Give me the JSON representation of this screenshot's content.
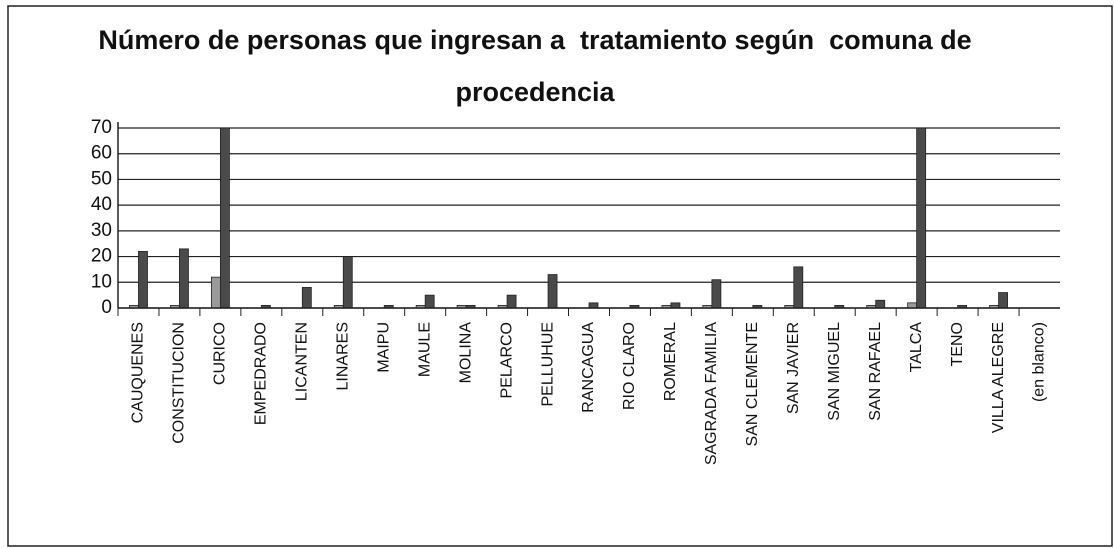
{
  "chart_data": {
    "type": "bar",
    "title": "Número de personas que ingresan a  tratamiento según  comuna de procedencia",
    "categories": [
      "CAUQUENES",
      "CONSTITUCION",
      "CURICO",
      "EMPEDRADO",
      "LICANTEN",
      "LINARES",
      "MAIPU",
      "MAULE",
      "MOLINA",
      "PELARCO",
      "PELLUHUE",
      "RANCAGUA",
      "RIO CLARO",
      "ROMERAL",
      "SAGRADA FAMILIA",
      "SAN CLEMENTE",
      "SAN JAVIER",
      "SAN MIGUEL",
      "SAN RAFAEL",
      "TALCA",
      "TENO",
      "VILLA ALEGRE",
      "(en blanco)"
    ],
    "series": [
      {
        "color": "#9a9a9a",
        "values": [
          1,
          1,
          12,
          0,
          0,
          1,
          0,
          1,
          1,
          1,
          0,
          0,
          0,
          1,
          1,
          0,
          1,
          0,
          1,
          2,
          0,
          1,
          0
        ]
      },
      {
        "color": "#4a4a4a",
        "values": [
          22,
          23,
          70,
          1,
          8,
          20,
          1,
          5,
          1,
          5,
          13,
          2,
          1,
          2,
          11,
          1,
          16,
          1,
          3,
          70,
          1,
          6,
          0
        ]
      }
    ],
    "ylim": [
      0,
      70
    ],
    "yticks": [
      0,
      10,
      20,
      30,
      40,
      50,
      60,
      70
    ],
    "grid": true
  }
}
